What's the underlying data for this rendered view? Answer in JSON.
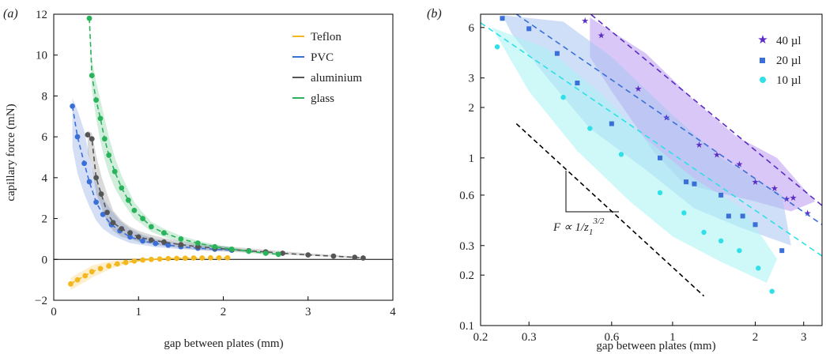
{
  "chart_data": [
    {
      "panel": "(a)",
      "type": "line",
      "xlabel": "gap between plates (mm)",
      "ylabel": "capillary force (mN)",
      "xlim": [
        0,
        4
      ],
      "ylim": [
        -2,
        12
      ],
      "xticks": [
        0,
        1,
        2,
        3,
        4
      ],
      "yticks": [
        -2,
        0,
        2,
        4,
        6,
        8,
        10,
        12
      ],
      "grid": false,
      "legend_position": "top-right",
      "series": [
        {
          "name": "Teflon",
          "color": "#f4b81f",
          "x": [
            0.2,
            0.28,
            0.37,
            0.45,
            0.55,
            0.65,
            0.75,
            0.85,
            0.95,
            1.05,
            1.15,
            1.25,
            1.35,
            1.45,
            1.55,
            1.65,
            1.75,
            1.85,
            1.95,
            2.05
          ],
          "y": [
            -1.2,
            -1.0,
            -0.8,
            -0.6,
            -0.45,
            -0.32,
            -0.22,
            -0.15,
            -0.08,
            -0.03,
            0.0,
            0.02,
            0.04,
            0.05,
            0.06,
            0.07,
            0.07,
            0.08,
            0.08,
            0.08
          ],
          "band_lower": [
            -1.5,
            -1.3,
            -1.1,
            -0.9,
            -0.7,
            -0.5,
            -0.35,
            -0.25,
            -0.15,
            -0.1,
            -0.05,
            -0.03,
            -0.01,
            0.0,
            0.01,
            0.02,
            0.03,
            0.04,
            0.05,
            0.05
          ],
          "band_upper": [
            -0.9,
            -0.7,
            -0.5,
            -0.3,
            -0.2,
            -0.1,
            -0.05,
            -0.02,
            0.0,
            0.04,
            0.06,
            0.07,
            0.08,
            0.09,
            0.1,
            0.1,
            0.1,
            0.1,
            0.1,
            0.11
          ]
        },
        {
          "name": "PVC",
          "color": "#3a6fd8",
          "x": [
            0.22,
            0.28,
            0.36,
            0.42,
            0.5,
            0.58,
            0.68,
            0.78,
            0.9,
            1.05,
            1.2,
            1.35,
            1.5,
            1.7,
            1.9,
            2.1
          ],
          "y": [
            7.5,
            6.0,
            4.7,
            3.8,
            2.8,
            2.2,
            1.7,
            1.4,
            1.1,
            0.9,
            0.78,
            0.7,
            0.62,
            0.55,
            0.5,
            0.45
          ],
          "band_lower": [
            5.5,
            4.2,
            3.2,
            2.6,
            1.9,
            1.5,
            1.2,
            1.0,
            0.8,
            0.7,
            0.6,
            0.55,
            0.5,
            0.45,
            0.4,
            0.38
          ],
          "band_upper": [
            7.9,
            7.3,
            6.3,
            5.0,
            3.8,
            3.0,
            2.4,
            1.9,
            1.5,
            1.2,
            1.0,
            0.9,
            0.8,
            0.7,
            0.65,
            0.6
          ]
        },
        {
          "name": "aluminium",
          "color": "#555555",
          "x": [
            0.4,
            0.45,
            0.5,
            0.56,
            0.63,
            0.7,
            0.8,
            0.9,
            1.0,
            1.15,
            1.3,
            1.5,
            1.7,
            1.9,
            2.1,
            2.3,
            2.5,
            2.7,
            3.0,
            3.3,
            3.55,
            3.65
          ],
          "y": [
            6.1,
            5.9,
            4.0,
            3.2,
            2.3,
            1.8,
            1.5,
            1.3,
            1.1,
            0.95,
            0.85,
            0.72,
            0.62,
            0.55,
            0.48,
            0.42,
            0.37,
            0.3,
            0.22,
            0.16,
            0.1,
            0.07
          ],
          "band_lower": [
            5.2,
            4.6,
            3.2,
            2.6,
            1.8,
            1.4,
            1.1,
            1.0,
            0.85,
            0.75,
            0.65,
            0.55,
            0.48,
            0.42,
            0.37,
            0.32,
            0.28,
            0.24,
            0.18,
            0.12,
            0.07,
            0.05
          ],
          "band_upper": [
            6.3,
            6.2,
            5.1,
            4.1,
            3.2,
            2.4,
            1.9,
            1.6,
            1.4,
            1.2,
            1.05,
            0.9,
            0.8,
            0.7,
            0.62,
            0.55,
            0.48,
            0.4,
            0.3,
            0.22,
            0.14,
            0.1
          ]
        },
        {
          "name": "glass",
          "color": "#29b35a",
          "x": [
            0.42,
            0.45,
            0.5,
            0.55,
            0.6,
            0.65,
            0.72,
            0.8,
            0.88,
            0.95,
            1.05,
            1.15,
            1.3,
            1.5,
            1.7,
            1.9,
            2.1,
            2.3,
            2.5,
            2.65
          ],
          "y": [
            11.8,
            9.0,
            7.8,
            6.9,
            5.9,
            5.1,
            4.3,
            3.5,
            2.9,
            2.4,
            2.0,
            1.6,
            1.3,
            1.0,
            0.8,
            0.62,
            0.5,
            0.4,
            0.3,
            0.25
          ],
          "band_lower": [
            11.6,
            8.3,
            6.9,
            5.8,
            4.9,
            4.2,
            3.5,
            2.9,
            2.4,
            2.0,
            1.7,
            1.35,
            1.1,
            0.85,
            0.68,
            0.52,
            0.42,
            0.33,
            0.25,
            0.2
          ],
          "band_upper": [
            11.9,
            9.8,
            8.7,
            7.8,
            6.9,
            6.0,
            5.0,
            4.1,
            3.4,
            2.8,
            2.3,
            1.85,
            1.5,
            1.15,
            0.92,
            0.72,
            0.58,
            0.47,
            0.36,
            0.3
          ]
        }
      ]
    },
    {
      "panel": "(b)",
      "type": "scatter",
      "xlabel": "gap between plates (mm)",
      "ylabel": "",
      "xscale": "log",
      "yscale": "log",
      "xlim": [
        0.2,
        3.5
      ],
      "ylim": [
        0.1,
        7.2
      ],
      "xticks": [
        0.2,
        0.3,
        0.6,
        1,
        2,
        3
      ],
      "xtick_labels": [
        "0.2",
        "0.3",
        "0.6",
        "1",
        "2",
        "3"
      ],
      "yticks": [
        0.1,
        0.2,
        0.3,
        0.6,
        1,
        2,
        3,
        6
      ],
      "ytick_labels": [
        "0.1",
        "0.2",
        "0.3",
        "0.6",
        "1",
        "2",
        "3",
        "6"
      ],
      "grid": false,
      "legend_position": "top-right",
      "annotation": "F ∝ 1/z₁^{3/2}",
      "annotation_parts": {
        "lhs": "F ∝ 1/z",
        "sub": "1",
        "sup": "3/2"
      },
      "series": [
        {
          "name": "40 µl",
          "color": "#5b2bc4",
          "marker": "star",
          "band_color": "#b99af0",
          "x": [
            0.48,
            0.55,
            0.75,
            0.95,
            1.25,
            1.45,
            1.75,
            2.0,
            2.35,
            2.6,
            2.75,
            3.1
          ],
          "y": [
            6.6,
            5.4,
            2.6,
            1.75,
            1.2,
            1.05,
            0.92,
            0.72,
            0.66,
            0.57,
            0.58,
            0.47
          ],
          "fit": {
            "x": [
              0.42,
              3.5
            ],
            "y": [
              9.2,
              0.52
            ]
          },
          "band": [
            [
              0.5,
              6.9
            ],
            [
              0.8,
              4.2
            ],
            [
              1.2,
              2.2
            ],
            [
              1.7,
              1.35
            ],
            [
              2.4,
              1.0
            ],
            [
              3.3,
              0.55
            ],
            [
              2.7,
              0.48
            ],
            [
              2.0,
              0.55
            ],
            [
              1.6,
              0.6
            ],
            [
              1.1,
              0.7
            ],
            [
              0.85,
              1.1
            ],
            [
              0.6,
              2.5
            ],
            [
              0.5,
              4.0
            ]
          ]
        },
        {
          "name": "20 µl",
          "color": "#3a6fd8",
          "marker": "square",
          "band_color": "#a8c4f2",
          "x": [
            0.24,
            0.3,
            0.38,
            0.45,
            0.6,
            0.9,
            1.12,
            1.2,
            1.5,
            1.6,
            1.8,
            2.0,
            2.5
          ],
          "y": [
            6.8,
            5.9,
            4.2,
            2.8,
            1.6,
            1.0,
            0.72,
            0.7,
            0.6,
            0.45,
            0.45,
            0.4,
            0.28
          ],
          "fit": {
            "x": [
              0.27,
              3.5
            ],
            "y": [
              7.2,
              0.4
            ]
          },
          "band": [
            [
              0.24,
              7.1
            ],
            [
              0.4,
              6.5
            ],
            [
              0.6,
              4.0
            ],
            [
              1.0,
              1.8
            ],
            [
              1.5,
              1.0
            ],
            [
              2.5,
              0.6
            ],
            [
              2.7,
              0.3
            ],
            [
              1.8,
              0.38
            ],
            [
              1.2,
              0.5
            ],
            [
              0.8,
              0.85
            ],
            [
              0.5,
              1.5
            ],
            [
              0.35,
              3.0
            ],
            [
              0.26,
              5.5
            ]
          ]
        },
        {
          "name": "10 µl",
          "color": "#2fe0e8",
          "marker": "circle",
          "band_color": "#a8f2f2",
          "x": [
            0.23,
            0.4,
            0.5,
            0.65,
            0.9,
            1.1,
            1.3,
            1.5,
            1.75,
            2.05,
            2.3
          ],
          "y": [
            4.6,
            2.3,
            1.5,
            1.05,
            0.62,
            0.47,
            0.36,
            0.32,
            0.28,
            0.22,
            0.16
          ],
          "fit": {
            "x": [
              0.2,
              3.5
            ],
            "y": [
              6.4,
              0.26
            ]
          },
          "band": [
            [
              0.22,
              6.0
            ],
            [
              0.35,
              4.5
            ],
            [
              0.55,
              2.4
            ],
            [
              0.8,
              1.3
            ],
            [
              1.2,
              0.75
            ],
            [
              1.8,
              0.5
            ],
            [
              2.4,
              0.25
            ],
            [
              2.2,
              0.18
            ],
            [
              1.5,
              0.24
            ],
            [
              1.0,
              0.34
            ],
            [
              0.7,
              0.55
            ],
            [
              0.45,
              1.1
            ],
            [
              0.3,
              2.5
            ]
          ]
        }
      ],
      "reference_line": {
        "color": "#000000",
        "x": [
          0.27,
          1.3
        ],
        "y": [
          1.6,
          0.15
        ]
      }
    }
  ]
}
